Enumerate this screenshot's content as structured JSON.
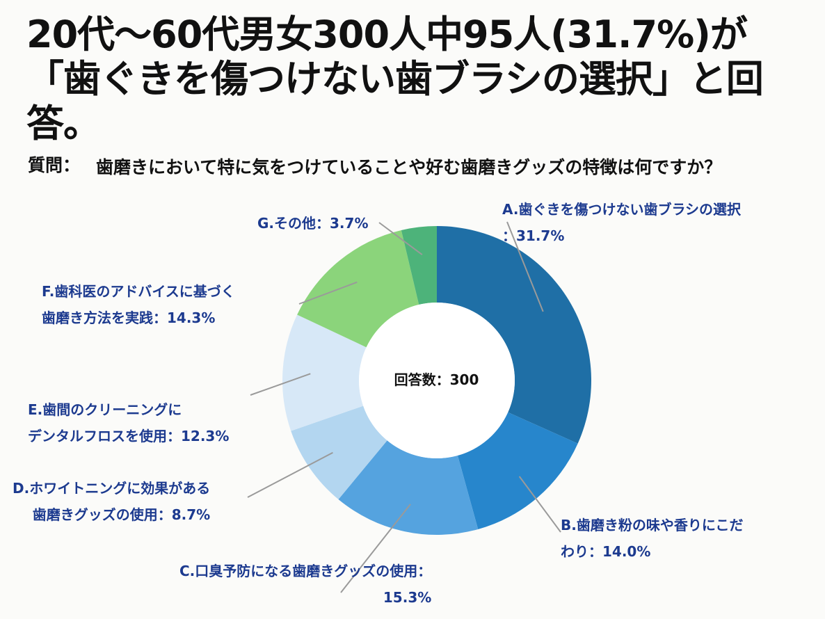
{
  "title": "20代〜60代男女300人中95人(31.7%)が「歯ぐきを傷つけない歯ブラシの選択」と回答。",
  "question": {
    "label": "質問：",
    "text": "歯磨きにおいて特に気をつけていることや好む歯磨きグッズの特徴は何ですか？"
  },
  "chart_data": {
    "type": "pie",
    "donut": true,
    "center_label": "回答数：300",
    "slices": [
      {
        "label_lines": [
          "A.歯ぐきを傷つけない歯ブラシの選択",
          "：31.7%"
        ],
        "value": 31.7,
        "color": "#1f6fa6"
      },
      {
        "label_lines": [
          "B.歯磨き粉の味や香りにこだ",
          "わり：14.0%"
        ],
        "value": 14.0,
        "color": "#2786cc"
      },
      {
        "label_lines": [
          "C.口臭予防になる歯磨きグッズの使用：",
          "15.3%"
        ],
        "value": 15.3,
        "color": "#55a3df"
      },
      {
        "label_lines": [
          "D.ホワイトニングに効果がある",
          "歯磨きグッズの使用：8.7%"
        ],
        "value": 8.7,
        "color": "#b3d6f0"
      },
      {
        "label_lines": [
          "E.歯間のクリーニングに",
          "デンタルフロスを使用：12.3%"
        ],
        "value": 12.3,
        "color": "#d7e8f7"
      },
      {
        "label_lines": [
          "F.歯科医のアドバイスに基づく",
          "歯磨き方法を実践：14.3%"
        ],
        "value": 14.3,
        "color": "#8bd47b"
      },
      {
        "label_lines": [
          "G.その他：3.7%"
        ],
        "value": 3.7,
        "color": "#4db37a"
      }
    ],
    "leader_color": "#9a9a9a"
  }
}
